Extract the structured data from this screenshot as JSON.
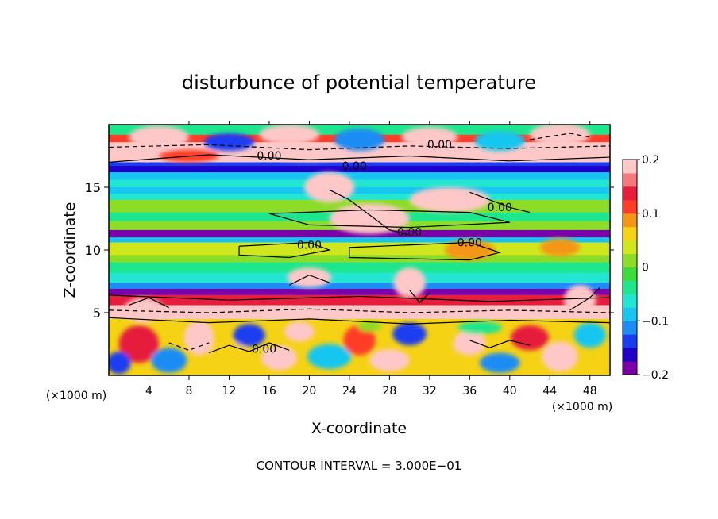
{
  "chart_data": {
    "type": "heatmap",
    "title": "disturbunce of potential temperature",
    "xlabel": "X-coordinate",
    "ylabel": "Z-coordinate",
    "x_unit": "(×1000 m)",
    "y_unit": "(×1000 m)",
    "xlim": [
      0,
      50
    ],
    "ylim": [
      0,
      20
    ],
    "x_ticks": [
      "4",
      "8",
      "12",
      "16",
      "20",
      "24",
      "28",
      "32",
      "36",
      "40",
      "44",
      "48"
    ],
    "x_tick_values": [
      4,
      8,
      12,
      16,
      20,
      24,
      28,
      32,
      36,
      40,
      44,
      48
    ],
    "y_ticks": [
      "5",
      "10",
      "15"
    ],
    "y_tick_values": [
      5,
      10,
      15
    ],
    "colorbar": {
      "min": -0.2,
      "max": 0.2,
      "tick_labels": [
        "0.2",
        "0.1",
        "0",
        "−0.1",
        "−0.2"
      ],
      "tick_values": [
        0.2,
        0.1,
        0,
        -0.1,
        -0.2
      ],
      "colors": [
        "#7a00a8",
        "#2000c8",
        "#1a3cf0",
        "#1e8cf5",
        "#16c6f0",
        "#22e6d2",
        "#1ee68c",
        "#3cdc3c",
        "#8cdc28",
        "#d2e61e",
        "#f5d214",
        "#f59614",
        "#ff3c28",
        "#e61e3c",
        "#f5787d",
        "#ffc8c8"
      ]
    },
    "zero_contour_label": "0.00",
    "contour_interval_text": "CONTOUR INTERVAL = 3.000E−01",
    "layers": [
      {
        "z_range": [
          0,
          4.5
        ],
        "value": "mixed",
        "description_values": [
          0.15,
          -0.1,
          0.05
        ]
      },
      {
        "z_range": [
          4.5,
          6.5
        ],
        "value": 0.2
      },
      {
        "z_range": [
          6.5,
          7.2
        ],
        "value": -0.2
      },
      {
        "z_range": [
          7.2,
          9.0
        ],
        "value": -0.05
      },
      {
        "z_range": [
          9.0,
          11.0
        ],
        "value": 0.02
      },
      {
        "z_range": [
          11.0,
          11.6
        ],
        "value": -0.18
      },
      {
        "z_range": [
          11.6,
          14.5
        ],
        "value": 0.0
      },
      {
        "z_range": [
          14.5,
          16.0
        ],
        "value": -0.08
      },
      {
        "z_range": [
          16.0,
          17.0
        ],
        "value": -0.14
      },
      {
        "z_range": [
          17.0,
          20.0
        ],
        "value": 0.2
      }
    ]
  }
}
